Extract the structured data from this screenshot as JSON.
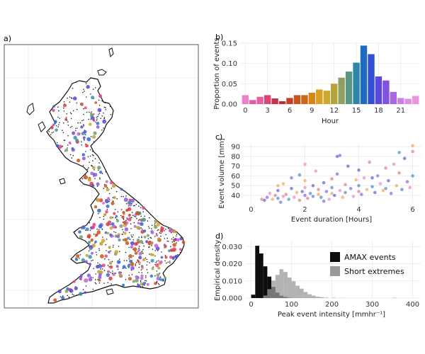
{
  "panels": {
    "a": {
      "label": "a)"
    },
    "b": {
      "label": "b)"
    },
    "c": {
      "label": "c)"
    },
    "d": {
      "label": "d)"
    }
  },
  "chart_data": [
    {
      "panel": "a",
      "type": "map",
      "xlabel": "",
      "ylabel": "",
      "grid": true,
      "site_colors": [
        "#e8428b",
        "#e03a3a",
        "#c6551a",
        "#d9a02a",
        "#b8a036",
        "#79a06a",
        "#3a8fa8",
        "#2f6bcf",
        "#5446d1",
        "#8d52e0",
        "#c061d7"
      ]
    },
    {
      "panel": "b",
      "type": "bar",
      "xlabel": "Hour",
      "ylabel": "Proportion of events",
      "x": [
        0,
        1,
        2,
        3,
        4,
        5,
        6,
        7,
        8,
        9,
        10,
        11,
        12,
        13,
        14,
        15,
        16,
        17,
        18,
        19,
        20,
        21,
        22,
        23
      ],
      "values": [
        0.022,
        0.01,
        0.018,
        0.022,
        0.014,
        0.007,
        0.015,
        0.022,
        0.022,
        0.028,
        0.036,
        0.033,
        0.05,
        0.065,
        0.08,
        0.102,
        0.144,
        0.123,
        0.068,
        0.058,
        0.03,
        0.015,
        0.013,
        0.02
      ],
      "colors": [
        "#ee82c8",
        "#e05aa8",
        "#e65fa2",
        "#db4473",
        "#c9304f",
        "#c12b3a",
        "#c64128",
        "#cb5418",
        "#cf6615",
        "#d88518",
        "#d9a023",
        "#cda830",
        "#b8a23a",
        "#8fa060",
        "#5a9683",
        "#2f86a8",
        "#1f68c3",
        "#2f50d2",
        "#5c48da",
        "#8052e0",
        "#a868e4",
        "#c882e8",
        "#de8fe6",
        "#ea95de"
      ],
      "xticks": [
        0,
        3,
        6,
        9,
        12,
        15,
        18,
        21
      ],
      "xtick_labels": [
        "0",
        "3",
        "6",
        "9",
        "12",
        "15",
        "18",
        "21"
      ],
      "yticks": [
        0,
        0.05,
        0.1,
        0.15
      ],
      "ytick_labels": [
        "0.00",
        "0.05",
        "0.10",
        "0.15"
      ],
      "ylim": [
        0,
        0.15
      ],
      "grid": true
    },
    {
      "panel": "c",
      "type": "scatter",
      "xlabel": "Event duration [Hours]",
      "ylabel": "Event volume [mm]",
      "xlim": [
        -0.3,
        6.3
      ],
      "ylim": [
        32,
        93
      ],
      "xticks": [
        0,
        2,
        4,
        6
      ],
      "xtick_labels": [
        "0",
        "2",
        "4",
        "6"
      ],
      "yticks": [
        40,
        50,
        60,
        70,
        80,
        90
      ],
      "ytick_labels": [
        "40",
        "50",
        "60",
        "70",
        "80",
        "90"
      ],
      "grid": true,
      "color_palette": [
        "#5b5fd6",
        "#7a6de0",
        "#e58cc6",
        "#f2a65a",
        "#e07b8b",
        "#4f8ac9"
      ],
      "points": [
        [
          0.5,
          35
        ],
        [
          0.6,
          38
        ],
        [
          0.7,
          42
        ],
        [
          0.8,
          36
        ],
        [
          0.9,
          40
        ],
        [
          1.0,
          37
        ],
        [
          1.0,
          45
        ],
        [
          1.1,
          33
        ],
        [
          1.2,
          39
        ],
        [
          1.2,
          52
        ],
        [
          1.3,
          41
        ],
        [
          1.4,
          36
        ],
        [
          1.5,
          47
        ],
        [
          1.5,
          58
        ],
        [
          1.6,
          38
        ],
        [
          1.7,
          43
        ],
        [
          1.8,
          35
        ],
        [
          1.8,
          61
        ],
        [
          1.9,
          44
        ],
        [
          2.0,
          40
        ],
        [
          2.0,
          48
        ],
        [
          2.0,
          55
        ],
        [
          2.1,
          37
        ],
        [
          2.2,
          42
        ],
        [
          2.3,
          50
        ],
        [
          2.3,
          39
        ],
        [
          2.4,
          65
        ],
        [
          2.5,
          41
        ],
        [
          2.5,
          46
        ],
        [
          2.6,
          38
        ],
        [
          2.7,
          53
        ],
        [
          2.8,
          44
        ],
        [
          2.9,
          36
        ],
        [
          3.0,
          42
        ],
        [
          3.0,
          57
        ],
        [
          3.0,
          48
        ],
        [
          3.1,
          40
        ],
        [
          3.2,
          62
        ],
        [
          3.3,
          45
        ],
        [
          3.4,
          38
        ],
        [
          3.5,
          51
        ],
        [
          3.5,
          43
        ],
        [
          3.6,
          70
        ],
        [
          3.7,
          47
        ],
        [
          3.8,
          39
        ],
        [
          3.9,
          56
        ],
        [
          4.0,
          44
        ],
        [
          4.0,
          50
        ],
        [
          4.0,
          66
        ],
        [
          4.1,
          41
        ],
        [
          4.2,
          58
        ],
        [
          4.3,
          46
        ],
        [
          4.4,
          74
        ],
        [
          4.5,
          49
        ],
        [
          4.6,
          43
        ],
        [
          4.7,
          60
        ],
        [
          4.8,
          52
        ],
        [
          4.9,
          45
        ],
        [
          5.0,
          68
        ],
        [
          5.0,
          47
        ],
        [
          5.1,
          55
        ],
        [
          5.2,
          42
        ],
        [
          5.3,
          72
        ],
        [
          5.4,
          50
        ],
        [
          5.5,
          63
        ],
        [
          5.6,
          46
        ],
        [
          5.7,
          78
        ],
        [
          5.8,
          54
        ],
        [
          5.9,
          48
        ],
        [
          6.0,
          91
        ],
        [
          6.0,
          85
        ],
        [
          6.0,
          60
        ],
        [
          3.2,
          80
        ],
        [
          3.3,
          81
        ],
        [
          2.0,
          72
        ],
        [
          1.0,
          50
        ],
        [
          0.4,
          36
        ],
        [
          5.5,
          84
        ],
        [
          4.5,
          58
        ],
        [
          2.7,
          34
        ]
      ]
    },
    {
      "panel": "d",
      "type": "histogram",
      "xlabel": "Peak event intensity [mmhr⁻¹]",
      "ylabel": "Empirical density",
      "xlim": [
        -15,
        420
      ],
      "ylim": [
        0,
        0.033
      ],
      "xticks": [
        0,
        100,
        200,
        300,
        400
      ],
      "xtick_labels": [
        "0",
        "100",
        "200",
        "300",
        "400"
      ],
      "yticks": [
        0,
        0.01,
        0.02,
        0.03
      ],
      "ytick_labels": [
        "0.000",
        "0.010",
        "0.020",
        "0.030"
      ],
      "grid": true,
      "legend_position": "right",
      "series": [
        {
          "name": "AMAX events",
          "color": "#0d0d0d",
          "bins": [
            [
              0,
              10,
              0.002
            ],
            [
              10,
              20,
              0.0305
            ],
            [
              20,
              30,
              0.026
            ],
            [
              30,
              40,
              0.0185
            ],
            [
              40,
              50,
              0.0125
            ],
            [
              50,
              60,
              0.0065
            ],
            [
              60,
              70,
              0.0032
            ],
            [
              70,
              80,
              0.0014
            ],
            [
              80,
              90,
              0.0006
            ],
            [
              90,
              100,
              0.0002
            ]
          ]
        },
        {
          "name": "Short extremes",
          "color": "#9a9a9a",
          "bins": [
            [
              30,
              40,
              0.0015
            ],
            [
              40,
              50,
              0.0052
            ],
            [
              50,
              60,
              0.0102
            ],
            [
              60,
              70,
              0.0135
            ],
            [
              70,
              80,
              0.0168
            ],
            [
              80,
              90,
              0.0152
            ],
            [
              90,
              100,
              0.012
            ],
            [
              100,
              110,
              0.0098
            ],
            [
              110,
              120,
              0.0072
            ],
            [
              120,
              130,
              0.0055
            ],
            [
              130,
              140,
              0.0035
            ],
            [
              140,
              150,
              0.0022
            ],
            [
              150,
              160,
              0.0014
            ],
            [
              160,
              170,
              0.0008
            ],
            [
              170,
              180,
              0.0005
            ],
            [
              180,
              190,
              0.0003
            ],
            [
              200,
              210,
              0.0002
            ],
            [
              220,
              230,
              0.0001
            ],
            [
              350,
              360,
              0.0002
            ]
          ]
        }
      ]
    }
  ]
}
